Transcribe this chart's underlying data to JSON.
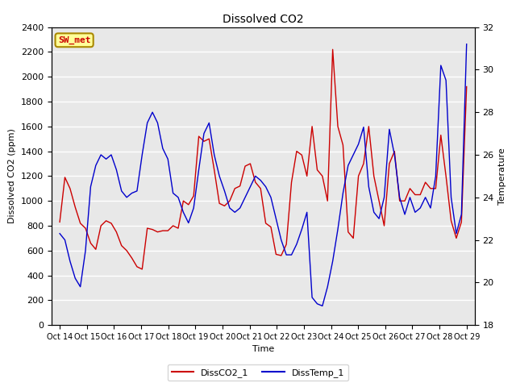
{
  "title": "Dissolved CO2",
  "xlabel": "Time",
  "ylabel_left": "Dissolved CO2 (ppm)",
  "ylabel_right": "Temperature",
  "ylim_left": [
    0,
    2400
  ],
  "ylim_right": [
    18,
    32
  ],
  "yticks_left": [
    0,
    200,
    400,
    600,
    800,
    1000,
    1200,
    1400,
    1600,
    1800,
    2000,
    2200,
    2400
  ],
  "yticks_right": [
    18,
    20,
    22,
    24,
    26,
    28,
    30,
    32
  ],
  "xtick_labels": [
    "Oct 14",
    "Oct 15",
    "Oct 16",
    "Oct 17",
    "Oct 18",
    "Oct 19",
    "Oct 20",
    "Oct 21",
    "Oct 22",
    "Oct 23",
    "Oct 24",
    "Oct 25",
    "Oct 26",
    "Oct 27",
    "Oct 28",
    "Oct 29"
  ],
  "legend_labels": [
    "DissCO2_1",
    "DissTemp_1"
  ],
  "annotation_text": "SW_met",
  "annotation_color": "#cc0000",
  "annotation_bg": "#ffff99",
  "bg_color": "#e8e8e8",
  "line_color_co2": "#cc0000",
  "line_color_temp": "#0000cc",
  "co2_values": [
    830,
    1190,
    1100,
    950,
    820,
    780,
    660,
    610,
    800,
    840,
    820,
    750,
    640,
    600,
    540,
    470,
    450,
    780,
    770,
    750,
    760,
    760,
    800,
    780,
    1000,
    970,
    1040,
    1520,
    1480,
    1500,
    1250,
    980,
    960,
    1000,
    1100,
    1120,
    1280,
    1300,
    1150,
    1100,
    820,
    790,
    570,
    560,
    650,
    1150,
    1400,
    1370,
    1200,
    1600,
    1250,
    1200,
    1000,
    2220,
    1600,
    1450,
    750,
    700,
    1200,
    1300,
    1600,
    1200,
    1000,
    800,
    1300,
    1400,
    1000,
    1000,
    1100,
    1050,
    1050,
    1150,
    1100,
    1100,
    1530,
    1200,
    840,
    700,
    830,
    1920
  ],
  "temp_values": [
    22.3,
    22.0,
    21.0,
    20.2,
    19.8,
    21.5,
    24.5,
    25.5,
    26.0,
    25.8,
    26.0,
    25.3,
    24.3,
    24.0,
    24.2,
    24.3,
    26.0,
    27.5,
    28.0,
    27.5,
    26.3,
    25.8,
    24.2,
    24.0,
    23.3,
    22.8,
    23.5,
    25.3,
    27.0,
    27.5,
    26.0,
    25.0,
    24.3,
    23.5,
    23.3,
    23.5,
    24.0,
    24.5,
    25.0,
    24.8,
    24.5,
    24.0,
    23.0,
    22.0,
    21.3,
    21.3,
    21.8,
    22.5,
    23.3,
    19.3,
    19.0,
    18.9,
    19.8,
    21.0,
    22.5,
    24.2,
    25.5,
    26.0,
    26.5,
    27.3,
    24.5,
    23.3,
    23.0,
    24.0,
    27.2,
    26.0,
    24.0,
    23.2,
    24.0,
    23.3,
    23.5,
    24.0,
    23.5,
    25.0,
    30.2,
    29.5,
    24.0,
    22.3,
    23.2,
    31.2
  ]
}
